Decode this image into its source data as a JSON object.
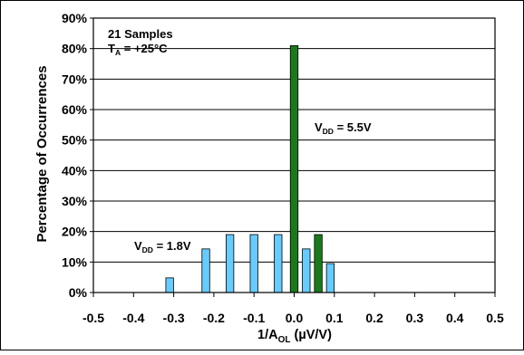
{
  "chart_data": {
    "type": "bar",
    "title": "",
    "xlabel": {
      "base": "1/A",
      "sub": "OL",
      "tail": " (µV/V)"
    },
    "ylabel": "Percentage of Occurrences",
    "xlim": [
      -0.5,
      0.5
    ],
    "ylim": [
      0,
      90
    ],
    "x_ticks": [
      "-0.5",
      "-0.4",
      "-0.3",
      "-0.2",
      "-0.1",
      "0.0",
      "0.1",
      "0.2",
      "0.3",
      "0.4",
      "0.5"
    ],
    "y_ticks": [
      "0%",
      "10%",
      "20%",
      "30%",
      "40%",
      "50%",
      "60%",
      "70%",
      "80%",
      "90%"
    ],
    "grid": "horizontal",
    "annotations": {
      "samples": "21 Samples",
      "temperature": {
        "base": "T",
        "sub": "A",
        "tail": " = +25°C"
      }
    },
    "series": [
      {
        "label": {
          "base": "V",
          "sub": "DD",
          "tail": " = 1.8V"
        },
        "color": "#66ccff",
        "points": [
          {
            "x": -0.31,
            "y": 4.8
          },
          {
            "x": -0.22,
            "y": 14.3
          },
          {
            "x": -0.16,
            "y": 19.0
          },
          {
            "x": -0.1,
            "y": 19.0
          },
          {
            "x": -0.04,
            "y": 19.0
          },
          {
            "x": 0.03,
            "y": 14.3
          },
          {
            "x": 0.09,
            "y": 9.5
          }
        ]
      },
      {
        "label": {
          "base": "V",
          "sub": "DD",
          "tail": " = 5.5V"
        },
        "color": "#1a7a1a",
        "points": [
          {
            "x": 0.0,
            "y": 81.0
          },
          {
            "x": 0.06,
            "y": 19.0
          }
        ]
      }
    ]
  }
}
